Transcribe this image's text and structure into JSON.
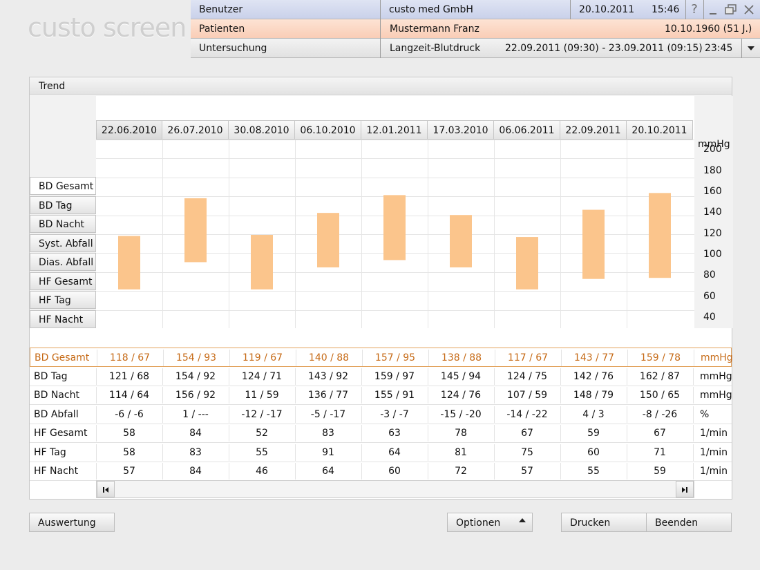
{
  "logo": "custo screen",
  "header": {
    "benutzer_label": "Benutzer",
    "benutzer_value": "custo med GmbH",
    "date": "20.10.2011",
    "time": "15:46",
    "help_icon": "?",
    "patienten_label": "Patienten",
    "patient_name": "Mustermann Franz",
    "patient_birth": "10.10.1960 (51 J.)",
    "untersuchung_label": "Untersuchung",
    "untersuchung_value": "Langzeit-Blutdruck",
    "untersuchung_range": "22.09.2011 (09:30) - 23.09.2011 (09:15)",
    "untersuchung_duration": "23:45"
  },
  "panel": {
    "title": "Trend",
    "dates": [
      "22.06.2010",
      "26.07.2010",
      "30.08.2010",
      "06.10.2010",
      "12.01.2011",
      "17.03.2010",
      "06.06.2011",
      "22.09.2011",
      "20.10.2011"
    ],
    "side_buttons": [
      "BD Gesamt",
      "BD Tag",
      "BD Nacht",
      "Syst. Abfall",
      "Dias. Abfall",
      "HF Gesamt",
      "HF Tag",
      "HF Nacht"
    ],
    "active_side_button": "BD Gesamt"
  },
  "chart_data": {
    "type": "bar",
    "unit": "mmHg",
    "ylim": [
      30,
      210
    ],
    "yticks": [
      40,
      60,
      80,
      100,
      120,
      140,
      160,
      180,
      200
    ],
    "categories": [
      "22.06.2010",
      "26.07.2010",
      "30.08.2010",
      "06.10.2010",
      "12.01.2011",
      "17.03.2010",
      "06.06.2011",
      "22.09.2011",
      "20.10.2011"
    ],
    "ranges": [
      {
        "high": 118,
        "low": 67
      },
      {
        "high": 154,
        "low": 93
      },
      {
        "high": 119,
        "low": 67
      },
      {
        "high": 140,
        "low": 88
      },
      {
        "high": 157,
        "low": 95
      },
      {
        "high": 138,
        "low": 88
      },
      {
        "high": 117,
        "low": 67
      },
      {
        "high": 143,
        "low": 77
      },
      {
        "high": 159,
        "low": 78
      }
    ],
    "color": "#fbc58c"
  },
  "table": {
    "rows": [
      {
        "label": "BD Gesamt",
        "unit": "mmHg",
        "values": [
          "118 / 67",
          "154 / 93",
          "119 / 67",
          "140 / 88",
          "157 / 95",
          "138 / 88",
          "117 / 67",
          "143 / 77",
          "159 / 78"
        ]
      },
      {
        "label": "BD Tag",
        "unit": "mmHg",
        "values": [
          "121 / 68",
          "154 / 92",
          "124 / 71",
          "143 / 92",
          "159 / 97",
          "145 / 94",
          "124 / 75",
          "142 / 76",
          "162 / 87"
        ]
      },
      {
        "label": "BD Nacht",
        "unit": "mmHg",
        "values": [
          "114 / 64",
          "156 / 92",
          "11 / 59",
          "136 / 77",
          "155 / 91",
          "124 / 76",
          "107 / 59",
          "148 / 79",
          "150 / 65"
        ]
      },
      {
        "label": "BD Abfall",
        "unit": "%",
        "values": [
          "-6 / -6",
          "1 / ---",
          "-12 / -17",
          "-5 / -17",
          "-3 / -7",
          "-15 / -20",
          "-14 / -22",
          "4 / 3",
          "-8 / -26"
        ]
      },
      {
        "label": "HF Gesamt",
        "unit": "1/min",
        "values": [
          "58",
          "84",
          "52",
          "83",
          "63",
          "78",
          "67",
          "59",
          "67"
        ]
      },
      {
        "label": "HF Tag",
        "unit": "1/min",
        "values": [
          "58",
          "83",
          "55",
          "91",
          "64",
          "81",
          "75",
          "60",
          "71"
        ]
      },
      {
        "label": "HF Nacht",
        "unit": "1/min",
        "values": [
          "57",
          "84",
          "46",
          "64",
          "60",
          "72",
          "57",
          "55",
          "59"
        ]
      }
    ]
  },
  "footer": {
    "auswertung": "Auswertung",
    "optionen": "Optionen",
    "drucken": "Drucken",
    "beenden": "Beenden"
  },
  "colors": {
    "highlight_text": "#c66a16",
    "bar_fill": "#fbc58c"
  }
}
